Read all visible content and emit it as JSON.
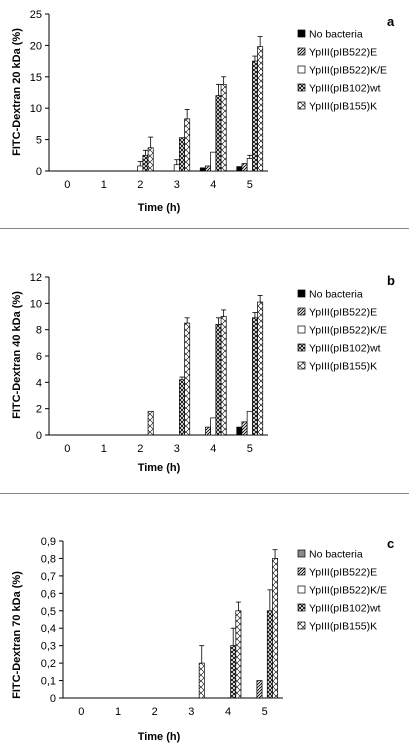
{
  "chart_data": [
    {
      "type": "bar",
      "panel_label": "a",
      "xlabel": "Time (h)",
      "ylabel": "FITC-Dextran 20 kDa (%)",
      "categories": [
        "0",
        "1",
        "2",
        "3",
        "4",
        "5"
      ],
      "ylim": [
        0,
        25
      ],
      "yticks": [
        "0",
        "5",
        "10",
        "15",
        "20",
        "25"
      ],
      "legend_position": "right",
      "series": [
        {
          "name": "No bacteria",
          "values": [
            0,
            0,
            0,
            0,
            0.5,
            0.7
          ],
          "errors": [
            0,
            0,
            0,
            0,
            0,
            0
          ],
          "pattern": "solid"
        },
        {
          "name": "YpIII(pIB522)E",
          "values": [
            0,
            0,
            0,
            0,
            0.8,
            1.2
          ],
          "errors": [
            0,
            0,
            0,
            0,
            0,
            0
          ],
          "pattern": "diag"
        },
        {
          "name": "YpIII(pIB522)K/E",
          "values": [
            0,
            0,
            0.8,
            1.0,
            3.0,
            2.0
          ],
          "errors": [
            0,
            0,
            0.7,
            0.8,
            0,
            0.5
          ],
          "pattern": "empty"
        },
        {
          "name": "YpIII(pIB102)wt",
          "values": [
            0,
            0,
            2.5,
            5.3,
            12.0,
            17.5
          ],
          "errors": [
            0,
            0,
            0.8,
            0,
            1.8,
            0.8
          ],
          "pattern": "cross"
        },
        {
          "name": "YpIII(pIB155)K",
          "values": [
            0,
            0,
            3.7,
            8.3,
            13.8,
            19.8
          ],
          "errors": [
            0,
            0,
            1.7,
            1.5,
            1.2,
            1.6
          ],
          "pattern": "xhatch"
        }
      ]
    },
    {
      "type": "bar",
      "panel_label": "b",
      "xlabel": "Time (h)",
      "ylabel": "FITC-Dextran 40 kDa (%)",
      "categories": [
        "0",
        "1",
        "2",
        "3",
        "4",
        "5"
      ],
      "ylim": [
        0,
        12
      ],
      "yticks": [
        "0",
        "2",
        "4",
        "6",
        "8",
        "10",
        "12"
      ],
      "legend_position": "right",
      "series": [
        {
          "name": "No bacteria",
          "values": [
            0,
            0,
            0,
            0,
            0,
            0.6
          ],
          "errors": [
            0,
            0,
            0,
            0,
            0,
            0
          ],
          "pattern": "solid"
        },
        {
          "name": "YpIII(pIB522)E",
          "values": [
            0,
            0,
            0,
            0,
            0.6,
            1.0
          ],
          "errors": [
            0,
            0,
            0,
            0,
            0,
            0
          ],
          "pattern": "diag"
        },
        {
          "name": "YpIII(pIB522)K/E",
          "values": [
            0,
            0,
            0,
            0,
            1.3,
            1.8
          ],
          "errors": [
            0,
            0,
            0,
            0,
            0,
            0
          ],
          "pattern": "empty"
        },
        {
          "name": "YpIII(pIB102)wt",
          "values": [
            0,
            0,
            0,
            4.2,
            8.4,
            8.9
          ],
          "errors": [
            0,
            0,
            0,
            0.2,
            0.5,
            0.4
          ],
          "pattern": "cross"
        },
        {
          "name": "YpIII(pIB155)K",
          "values": [
            0,
            0,
            1.8,
            8.5,
            9.0,
            10.1
          ],
          "errors": [
            0,
            0,
            0,
            0.4,
            0.5,
            0.5
          ],
          "pattern": "xhatch"
        }
      ]
    },
    {
      "type": "bar",
      "panel_label": "c",
      "xlabel": "Time (h)",
      "ylabel": "FITC-Dextran 70 kDa (%)",
      "categories": [
        "0",
        "1",
        "2",
        "3",
        "4",
        "5"
      ],
      "ylim": [
        0,
        0.9
      ],
      "yticks": [
        "0",
        "0,1",
        "0,2",
        "0,3",
        "0,4",
        "0,5",
        "0,6",
        "0,7",
        "0,8",
        "0,9"
      ],
      "legend_position": "right",
      "series": [
        {
          "name": "No bacteria",
          "values": [
            0,
            0,
            0,
            0,
            0,
            0
          ],
          "errors": [
            0,
            0,
            0,
            0,
            0,
            0
          ],
          "pattern": "gray"
        },
        {
          "name": "YpIII(pIB522)E",
          "values": [
            0,
            0,
            0,
            0,
            0,
            0.1
          ],
          "errors": [
            0,
            0,
            0,
            0,
            0,
            0
          ],
          "pattern": "diag"
        },
        {
          "name": "YpIII(pIB522)K/E",
          "values": [
            0,
            0,
            0,
            0,
            0,
            0
          ],
          "errors": [
            0,
            0,
            0,
            0,
            0,
            0
          ],
          "pattern": "empty"
        },
        {
          "name": "YpIII(pIB102)wt",
          "values": [
            0,
            0,
            0,
            0,
            0.3,
            0.5
          ],
          "errors": [
            0,
            0,
            0,
            0,
            0.1,
            0.12
          ],
          "pattern": "cross"
        },
        {
          "name": "YpIII(pIB155)K",
          "values": [
            0,
            0,
            0,
            0.2,
            0.5,
            0.8
          ],
          "errors": [
            0,
            0,
            0,
            0.1,
            0.05,
            0.05
          ],
          "pattern": "xhatch"
        }
      ]
    }
  ]
}
